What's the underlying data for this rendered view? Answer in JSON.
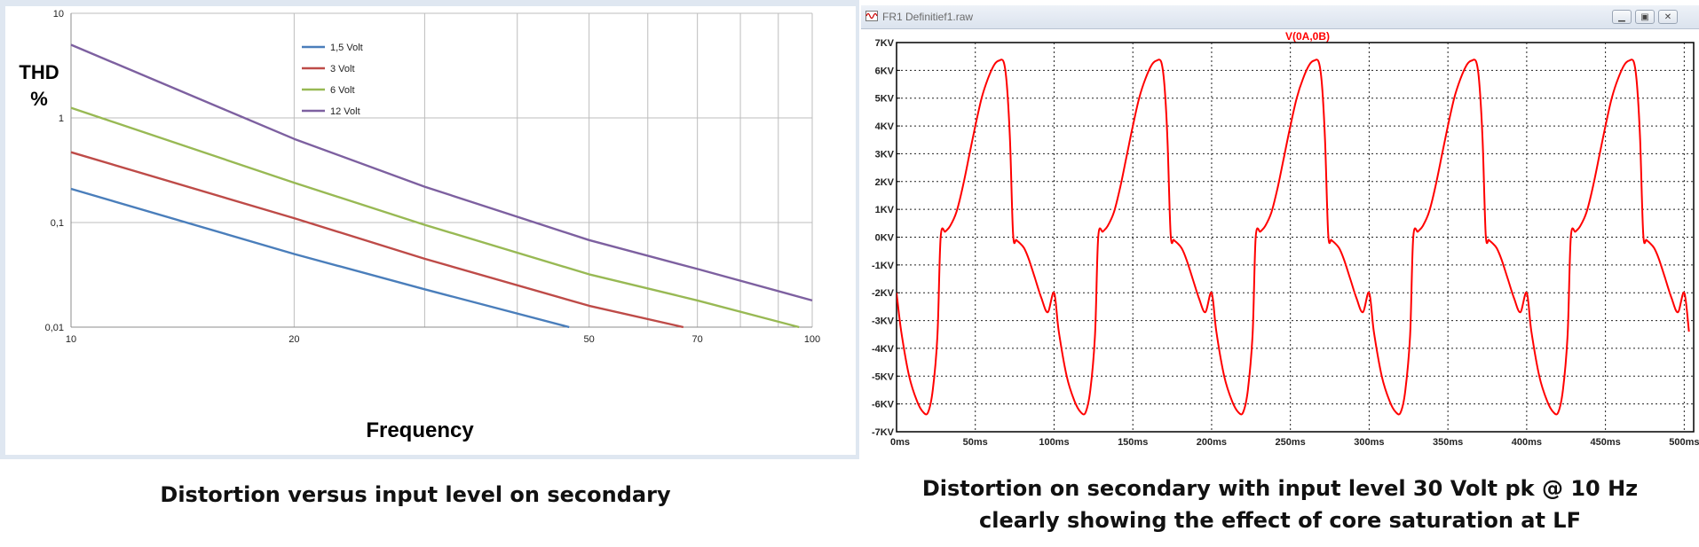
{
  "left_chart": {
    "y_label_line1": "THD",
    "y_label_line2": "%",
    "x_label": "Frequency",
    "y_ticks": [
      "10",
      "1",
      "0,1",
      "0,01"
    ],
    "x_ticks": [
      "10",
      "20",
      "50",
      "70",
      "100"
    ],
    "legend": [
      "1,5 Volt",
      "3 Volt",
      "6 Volt",
      "12 Volt"
    ]
  },
  "right_window": {
    "title": "FR1 Definitief1.raw",
    "plot_title": "V(0A,0B)",
    "y_ticks": [
      "7KV",
      "6KV",
      "5KV",
      "4KV",
      "3KV",
      "2KV",
      "1KV",
      "0KV",
      "-1KV",
      "-2KV",
      "-3KV",
      "-4KV",
      "-5KV",
      "-6KV",
      "-7KV"
    ],
    "x_ticks": [
      "0ms",
      "50ms",
      "100ms",
      "150ms",
      "200ms",
      "250ms",
      "300ms",
      "350ms",
      "400ms",
      "450ms",
      "500ms"
    ]
  },
  "captions": {
    "left": "Distortion versus input level  on secondary",
    "right_line1": "Distortion on secondary with input level 30 Volt pk @ 10 Hz",
    "right_line2": "clearly showing the effect of core saturation at LF"
  },
  "chart_data": [
    {
      "type": "line",
      "title": "",
      "xlabel": "Frequency",
      "ylabel": "THD %",
      "x_scale": "log",
      "y_scale": "log",
      "xlim": [
        10,
        100
      ],
      "ylim": [
        0.01,
        10
      ],
      "grid": true,
      "legend_position": "top-center",
      "series": [
        {
          "name": "1,5 Volt",
          "color": "#4a7ebb",
          "x": [
            10,
            20,
            30,
            47
          ],
          "y": [
            0.21,
            0.05,
            0.023,
            0.01
          ]
        },
        {
          "name": "3 Volt",
          "color": "#be4b48",
          "x": [
            10,
            20,
            30,
            50,
            67
          ],
          "y": [
            0.47,
            0.11,
            0.045,
            0.016,
            0.01
          ]
        },
        {
          "name": "6 Volt",
          "color": "#98b954",
          "x": [
            10,
            20,
            30,
            50,
            70,
            96
          ],
          "y": [
            1.25,
            0.24,
            0.095,
            0.032,
            0.018,
            0.01
          ]
        },
        {
          "name": "12 Volt",
          "color": "#7d60a0",
          "x": [
            10,
            20,
            30,
            50,
            70,
            100
          ],
          "y": [
            5.0,
            0.63,
            0.22,
            0.068,
            0.036,
            0.018
          ]
        }
      ]
    },
    {
      "type": "line",
      "title": "V(0A,0B)",
      "xlabel": "",
      "ylabel": "",
      "x_unit": "ms",
      "y_unit": "KV",
      "xlim": [
        0,
        500
      ],
      "ylim": [
        -7,
        7
      ],
      "grid": true,
      "series": [
        {
          "name": "V(0A,0B)",
          "color": "#ff0000",
          "period_ms": 100,
          "start_ms": 0,
          "end_ms": 505,
          "x": [
            0,
            3,
            8,
            13,
            17,
            20,
            23,
            26,
            28,
            31,
            34,
            38,
            42,
            46,
            50,
            54,
            58,
            62,
            65,
            68,
            70,
            72,
            74,
            76,
            78,
            81,
            84,
            88,
            92,
            96,
            100
          ],
          "y": [
            -2.0,
            -3.4,
            -5.0,
            -5.9,
            -6.3,
            -6.3,
            -5.5,
            -3.5,
            0.0,
            0.2,
            0.4,
            0.9,
            1.8,
            2.9,
            4.0,
            5.0,
            5.7,
            6.2,
            6.35,
            6.3,
            5.5,
            3.5,
            0.1,
            -0.1,
            -0.2,
            -0.4,
            -0.8,
            -1.5,
            -2.2,
            -2.7,
            -2.0
          ]
        }
      ]
    }
  ]
}
